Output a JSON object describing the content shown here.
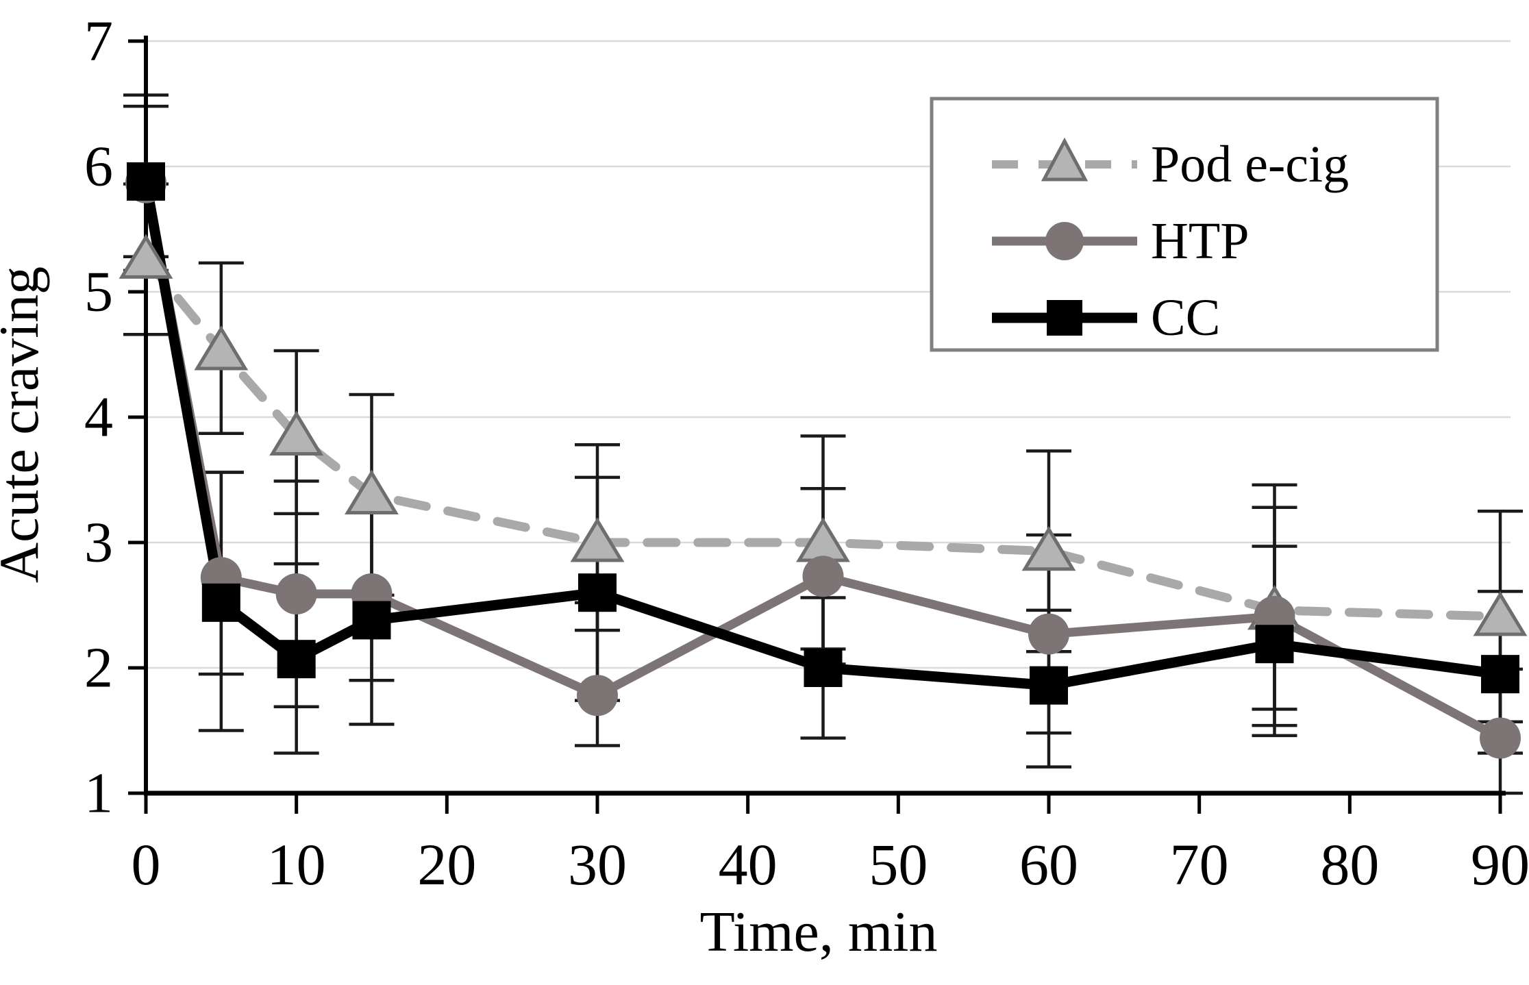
{
  "figure": {
    "kind": "error-bar line chart",
    "title": ""
  },
  "y_axis": {
    "title": "Acute craving",
    "min": 1,
    "max": 7,
    "ticks": [
      1,
      2,
      3,
      4,
      5,
      6,
      7
    ]
  },
  "x_axis": {
    "title": "Time, min",
    "min": 0,
    "max": 90,
    "ticks": [
      0,
      10,
      20,
      30,
      40,
      50,
      60,
      70,
      80,
      90
    ]
  },
  "legend": {
    "position": "top-right",
    "items": [
      {
        "label": "Pod e-cig",
        "series": "pod"
      },
      {
        "label": "HTP",
        "series": "htp"
      },
      {
        "label": "CC",
        "series": "cc"
      }
    ]
  },
  "colors": {
    "pod_line": "#a9a9a9",
    "pod_marker_fill": "#b4b4b4",
    "pod_marker_stroke": "#6e6e6e",
    "htp": "#7d7575",
    "cc": "#000000",
    "grid": "#d9d9d9",
    "axis": "#000000",
    "error_bar": "#1a1a1a",
    "legend_border": "#808080",
    "background": "#ffffff"
  },
  "chart_data": {
    "type": "line",
    "x": [
      0,
      5,
      10,
      15,
      30,
      45,
      60,
      75,
      90
    ],
    "series": [
      {
        "name": "Pod e-cig",
        "key": "pod",
        "marker": "triangle",
        "line_style": "dashed",
        "values": [
          5.26,
          4.53,
          3.85,
          3.38,
          3.0,
          3.0,
          2.93,
          2.46,
          2.41
        ],
        "err_up": [
          0.6,
          0.7,
          0.68,
          0.8,
          0.78,
          0.85,
          0.8,
          1.0,
          0.84
        ],
        "err_down": [
          0.6,
          0.66,
          0.62,
          0.8,
          0.7,
          0.85,
          0.8,
          1.0,
          0.84
        ]
      },
      {
        "name": "HTP",
        "key": "htp",
        "marker": "circle",
        "line_style": "solid",
        "values": [
          5.87,
          2.72,
          2.59,
          2.59,
          1.78,
          2.73,
          2.27,
          2.41,
          1.44
        ],
        "err_up": [
          0.7,
          0.84,
          0.9,
          0.67,
          0.74,
          0.7,
          0.79,
          0.87,
          0.55
        ],
        "err_down": [
          0.7,
          0.77,
          0.9,
          1.04,
          0.4,
          0.7,
          0.79,
          0.87,
          0.44
        ]
      },
      {
        "name": "CC",
        "key": "cc",
        "marker": "square",
        "line_style": "solid",
        "values": [
          5.88,
          2.52,
          2.07,
          2.38,
          2.6,
          2.0,
          1.86,
          2.19,
          1.95
        ],
        "err_up": [
          0.6,
          1.04,
          0.76,
          0.88,
          0.92,
          0.56,
          0.6,
          0.78,
          0.66
        ],
        "err_down": [
          0.6,
          1.02,
          0.75,
          0.48,
          0.86,
          0.56,
          0.65,
          0.52,
          0.63
        ]
      }
    ],
    "title": "",
    "xlabel": "Time, min",
    "ylabel": "Acute craving",
    "xlim": [
      0,
      90
    ],
    "ylim": [
      1,
      7
    ],
    "grid": "horizontal",
    "legend_position": "top-right"
  }
}
